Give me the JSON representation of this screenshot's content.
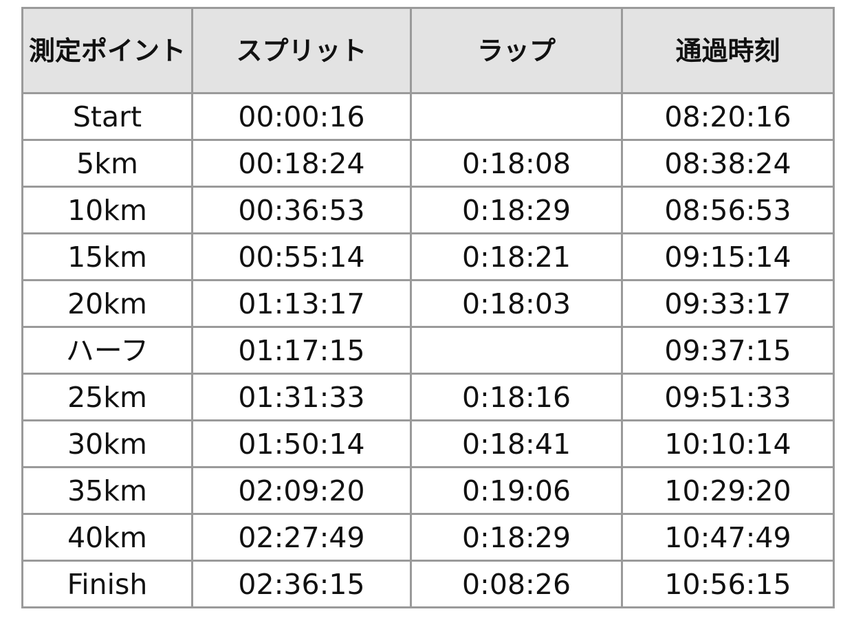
{
  "table": {
    "headers": [
      "測定ポイント",
      "スプリット",
      "ラップ",
      "通過時刻"
    ],
    "rows": [
      [
        "Start",
        "00:00:16",
        "",
        "08:20:16"
      ],
      [
        "5km",
        "00:18:24",
        "0:18:08",
        "08:38:24"
      ],
      [
        "10km",
        "00:36:53",
        "0:18:29",
        "08:56:53"
      ],
      [
        "15km",
        "00:55:14",
        "0:18:21",
        "09:15:14"
      ],
      [
        "20km",
        "01:13:17",
        "0:18:03",
        "09:33:17"
      ],
      [
        "ハーフ",
        "01:17:15",
        "",
        "09:37:15"
      ],
      [
        "25km",
        "01:31:33",
        "0:18:16",
        "09:51:33"
      ],
      [
        "30km",
        "01:50:14",
        "0:18:41",
        "10:10:14"
      ],
      [
        "35km",
        "02:09:20",
        "0:19:06",
        "10:29:20"
      ],
      [
        "40km",
        "02:27:49",
        "0:18:29",
        "10:47:49"
      ],
      [
        "Finish",
        "02:36:15",
        "0:08:26",
        "10:56:15"
      ]
    ]
  },
  "colors": {
    "header_bg": "#e3e3e3",
    "border": "#9a9a9a",
    "text": "#111111"
  }
}
